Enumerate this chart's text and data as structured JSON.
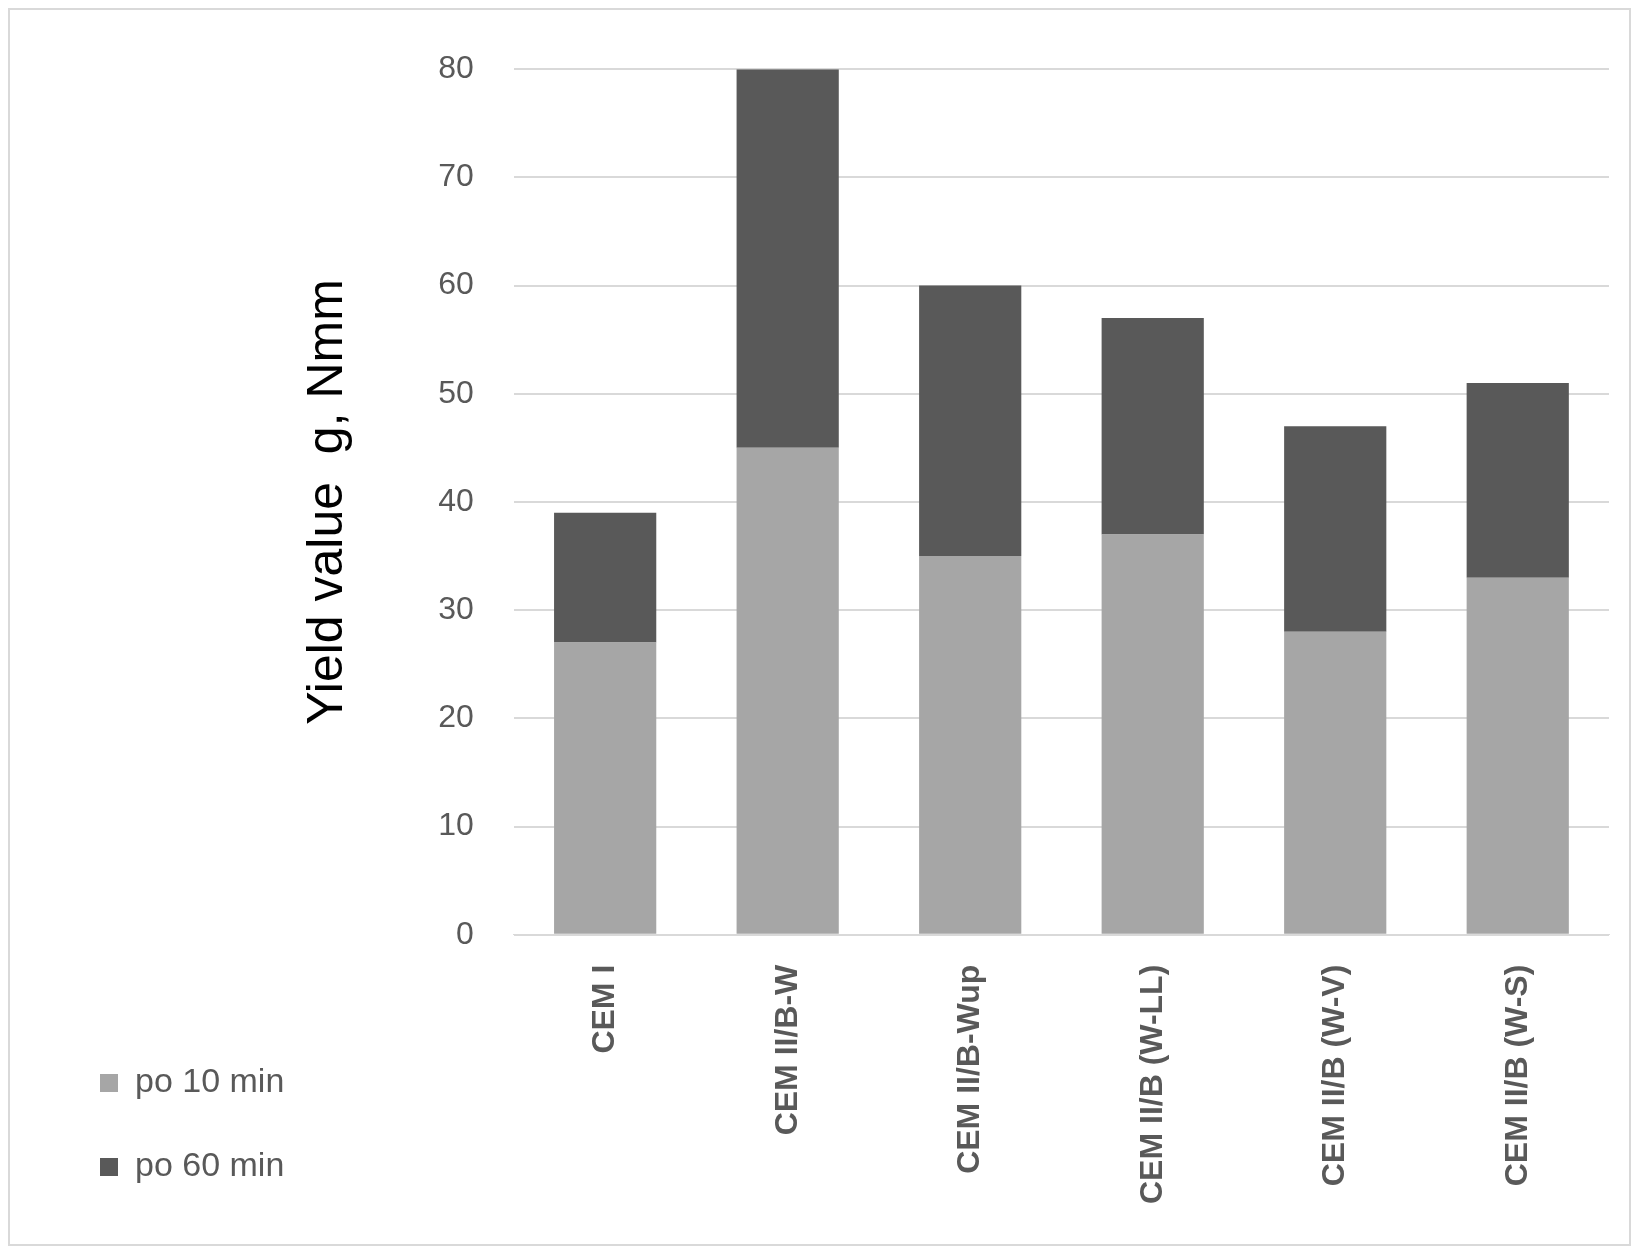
{
  "chart_data": {
    "type": "bar",
    "stacked": true,
    "ylabel": "Yield value  g, Nmm",
    "categories": [
      "CEM I",
      "CEM II/B-W",
      "CEM II/B-Wup",
      "CEM II/B (W-LL)",
      "CEM II/B (W-V)",
      "CEM II/B (W-S)"
    ],
    "series": [
      {
        "name": "po 10 min",
        "color": "#a6a6a6",
        "values": [
          27,
          45,
          35,
          37,
          28,
          33
        ]
      },
      {
        "name": "po 60 min",
        "color": "#595959",
        "values": [
          12,
          35,
          25,
          20,
          19,
          18
        ]
      }
    ],
    "ylim": [
      0,
      80
    ],
    "yticks": [
      0,
      10,
      20,
      30,
      40,
      50,
      60,
      70,
      80
    ],
    "grid": "y",
    "legend": "bottom left"
  }
}
